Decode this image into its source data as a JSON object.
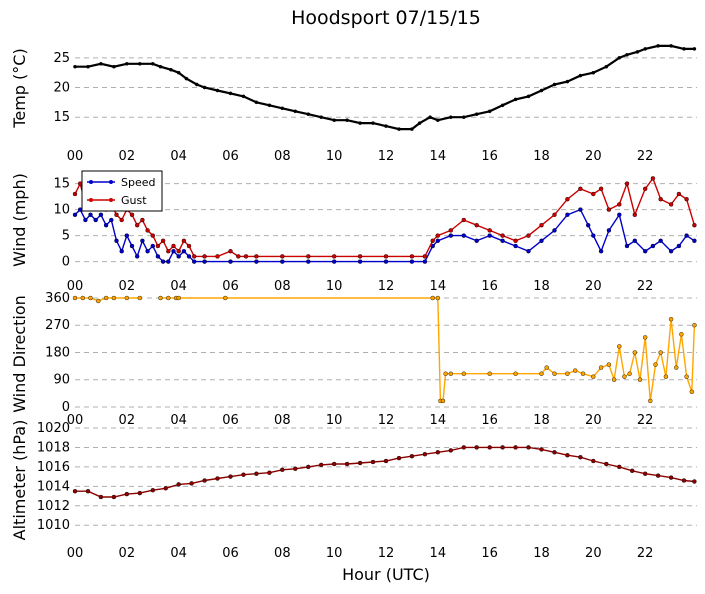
{
  "chart_data": [
    {
      "type": "line",
      "title": "Hoodsport 07/15/15",
      "ylabel": "Temp ($^\\circ$C)",
      "ylabel_display": "Temp (°C)",
      "ylim": [
        12,
        28
      ],
      "yticks": [
        15,
        20,
        25
      ],
      "xlim": [
        0,
        24
      ],
      "xticks": [
        "00",
        "02",
        "04",
        "06",
        "08",
        "10",
        "12",
        "14",
        "16",
        "18",
        "20",
        "22"
      ],
      "grid": "horizontal-dashed",
      "series": [
        {
          "color": "#000000",
          "marker": "dot",
          "x": [
            0,
            0.5,
            1,
            1.5,
            2,
            2.5,
            3,
            3.3,
            3.7,
            4,
            4.3,
            4.7,
            5,
            5.5,
            6,
            6.5,
            7,
            7.5,
            8,
            8.5,
            9,
            9.5,
            10,
            10.5,
            11,
            11.5,
            12,
            12.5,
            13,
            13.3,
            13.7,
            14,
            14.5,
            15,
            15.5,
            16,
            16.5,
            17,
            17.5,
            18,
            18.5,
            19,
            19.5,
            20,
            20.5,
            21,
            21.3,
            21.7,
            22,
            22.5,
            23,
            23.5,
            23.9
          ],
          "y": [
            23.5,
            23.5,
            24,
            23.5,
            24,
            24,
            24,
            23.5,
            23,
            22.5,
            21.5,
            20.5,
            20,
            19.5,
            19,
            18.5,
            17.5,
            17,
            16.5,
            16,
            15.5,
            15,
            14.5,
            14.5,
            14,
            14,
            13.5,
            13,
            13,
            14,
            15,
            14.5,
            15,
            15,
            15.5,
            16,
            17,
            18,
            18.5,
            19.5,
            20.5,
            21,
            22,
            22.5,
            23.5,
            25,
            25.5,
            26,
            26.5,
            27,
            27,
            26.5,
            26.5
          ]
        }
      ]
    },
    {
      "type": "line",
      "ylabel": "Wind (mph)",
      "ylim": [
        -2,
        18
      ],
      "yticks": [
        0,
        5,
        10,
        15
      ],
      "xlim": [
        0,
        24
      ],
      "xticks": [
        "00",
        "02",
        "04",
        "06",
        "08",
        "10",
        "12",
        "14",
        "16",
        "18",
        "20",
        "22"
      ],
      "grid": "horizontal-dashed",
      "legend": "top-left",
      "series": [
        {
          "name": "Speed",
          "color": "#0000cc",
          "x": [
            0,
            0.2,
            0.4,
            0.6,
            0.8,
            1,
            1.2,
            1.4,
            1.6,
            1.8,
            2,
            2.2,
            2.4,
            2.6,
            2.8,
            3,
            3.2,
            3.4,
            3.6,
            3.8,
            4,
            4.2,
            4.4,
            4.6,
            5,
            6,
            7,
            8,
            9,
            10,
            11,
            12,
            13,
            13.5,
            13.8,
            14,
            14.5,
            15,
            15.5,
            16,
            16.5,
            17,
            17.5,
            18,
            18.5,
            19,
            19.5,
            19.8,
            20,
            20.3,
            20.6,
            21,
            21.3,
            21.6,
            22,
            22.3,
            22.6,
            23,
            23.3,
            23.6,
            23.9
          ],
          "y": [
            9,
            10,
            8,
            9,
            8,
            9,
            7,
            8,
            4,
            2,
            5,
            3,
            1,
            4,
            2,
            3,
            1,
            0,
            0,
            2,
            1,
            2,
            1,
            0,
            0,
            0,
            0,
            0,
            0,
            0,
            0,
            0,
            0,
            0,
            3,
            4,
            5,
            5,
            4,
            5,
            4,
            3,
            2,
            4,
            6,
            9,
            10,
            7,
            5,
            2,
            6,
            9,
            3,
            4,
            2,
            3,
            4,
            2,
            3,
            5,
            4
          ]
        },
        {
          "name": "Gust",
          "color": "#cc0000",
          "x": [
            0,
            0.2,
            0.4,
            0.6,
            0.8,
            1,
            1.2,
            1.4,
            1.6,
            1.8,
            2,
            2.2,
            2.4,
            2.6,
            2.8,
            3,
            3.2,
            3.4,
            3.6,
            3.8,
            4,
            4.2,
            4.4,
            4.6,
            5,
            5.5,
            6,
            6.3,
            6.6,
            7,
            8,
            9,
            10,
            11,
            12,
            13,
            13.5,
            13.8,
            14,
            14.5,
            15,
            15.5,
            16,
            16.5,
            17,
            17.5,
            18,
            18.5,
            19,
            19.5,
            20,
            20.3,
            20.6,
            21,
            21.3,
            21.6,
            22,
            22.3,
            22.6,
            23,
            23.3,
            23.6,
            23.9
          ],
          "y": [
            13,
            15,
            11,
            13,
            11,
            12,
            10,
            11,
            9,
            8,
            10,
            9,
            7,
            8,
            6,
            5,
            3,
            4,
            2,
            3,
            2,
            4,
            3,
            1,
            1,
            1,
            2,
            1,
            1,
            1,
            1,
            1,
            1,
            1,
            1,
            1,
            1,
            4,
            5,
            6,
            8,
            7,
            6,
            5,
            4,
            5,
            7,
            9,
            12,
            14,
            13,
            14,
            10,
            11,
            15,
            9,
            14,
            16,
            12,
            11,
            13,
            12,
            7
          ]
        }
      ],
      "legend_entries": [
        "Speed",
        "Gust"
      ]
    },
    {
      "type": "line",
      "ylabel": "Wind Direction",
      "ylim": [
        -10,
        360
      ],
      "yticks": [
        0,
        90,
        180,
        270,
        360
      ],
      "xlim": [
        0,
        24
      ],
      "xticks": [
        "00",
        "02",
        "04",
        "06",
        "08",
        "10",
        "12",
        "14",
        "16",
        "18",
        "20",
        "22"
      ],
      "grid": "horizontal-dashed",
      "series": [
        {
          "color": "#ffa500",
          "x": [
            0,
            0.3,
            0.6,
            0.9,
            1.2,
            1.5,
            2,
            2.5,
            2.7,
            3.3,
            3.6,
            3.9,
            4,
            5.8,
            13.8,
            14,
            14.1,
            14.2,
            14.3,
            14.5,
            15,
            16,
            17,
            18,
            18.2,
            18.5,
            19,
            19.3,
            19.6,
            20,
            20.3,
            20.6,
            20.8,
            21,
            21.2,
            21.4,
            21.6,
            21.8,
            22,
            22.2,
            22.4,
            22.6,
            22.8,
            23,
            23.2,
            23.4,
            23.6,
            23.8,
            23.9
          ],
          "y": [
            360,
            360,
            360,
            350,
            360,
            360,
            360,
            360,
            null,
            360,
            360,
            360,
            360,
            360,
            360,
            360,
            20,
            20,
            110,
            110,
            110,
            110,
            110,
            110,
            130,
            110,
            110,
            120,
            110,
            100,
            130,
            140,
            90,
            200,
            100,
            110,
            180,
            90,
            230,
            20,
            140,
            180,
            100,
            290,
            130,
            240,
            100,
            50,
            270
          ]
        }
      ]
    },
    {
      "type": "line",
      "ylabel": "Altimeter (hPa)",
      "xlabel": "Hour (UTC)",
      "ylim": [
        1009.3,
        1020
      ],
      "yticks": [
        1010,
        1012,
        1014,
        1016,
        1018,
        1020
      ],
      "xlim": [
        0,
        24
      ],
      "xticks": [
        "00",
        "02",
        "04",
        "06",
        "08",
        "10",
        "12",
        "14",
        "16",
        "18",
        "20",
        "22"
      ],
      "grid": "horizontal-dashed",
      "series": [
        {
          "color": "#8b0000",
          "x": [
            0,
            0.5,
            1,
            1.5,
            2,
            2.5,
            3,
            3.5,
            4,
            4.5,
            5,
            5.5,
            6,
            6.5,
            7,
            7.5,
            8,
            8.5,
            9,
            9.5,
            10,
            10.5,
            11,
            11.5,
            12,
            12.5,
            13,
            13.5,
            14,
            14.5,
            15,
            15.5,
            16,
            16.5,
            17,
            17.5,
            18,
            18.5,
            19,
            19.5,
            20,
            20.5,
            21,
            21.5,
            22,
            22.5,
            23,
            23.5,
            23.9
          ],
          "y": [
            1013.5,
            1013.5,
            1012.9,
            1012.9,
            1013.2,
            1013.3,
            1013.6,
            1013.8,
            1014.2,
            1014.3,
            1014.6,
            1014.8,
            1015,
            1015.2,
            1015.3,
            1015.4,
            1015.7,
            1015.8,
            1016,
            1016.2,
            1016.3,
            1016.3,
            1016.4,
            1016.5,
            1016.6,
            1016.9,
            1017.1,
            1017.3,
            1017.5,
            1017.7,
            1018,
            1018,
            1018,
            1018,
            1018,
            1018,
            1017.8,
            1017.5,
            1017.2,
            1017,
            1016.6,
            1016.3,
            1016,
            1015.6,
            1015.3,
            1015.1,
            1014.9,
            1014.6,
            1014.5
          ]
        }
      ]
    }
  ]
}
